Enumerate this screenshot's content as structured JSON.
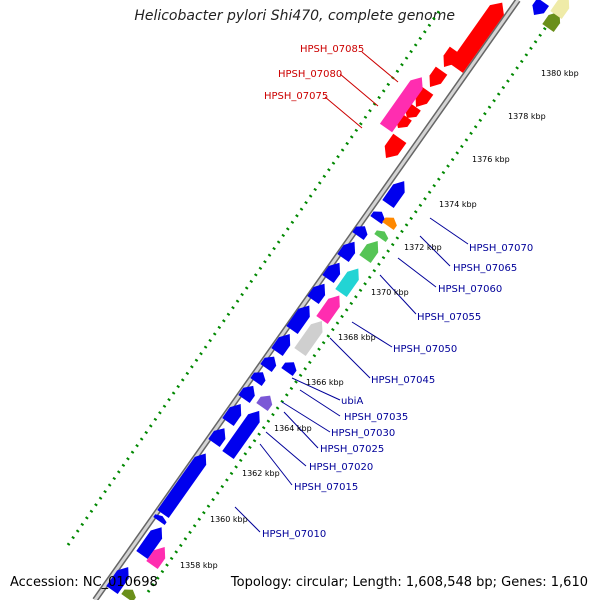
{
  "title": "Helicobacter pylori Shi470, complete genome",
  "accession": "Accession: NC_010698",
  "summary": "Topology: circular; Length: 1,608,548 bp; Genes: 1,610",
  "colors": {
    "backbone": "#999999",
    "ticks": "#008800",
    "reverse_genes": "#ff0000",
    "forward_genes": "#0000ee",
    "highlight_magenta": "#ff2db0",
    "cyan": "#22d4d4",
    "green": "#55c455",
    "orange": "#ff8800",
    "gray": "#cfcfcf",
    "violet": "#7b58d6",
    "olive": "#6a8f1a",
    "khaki": "#efeba8"
  },
  "tick_labels": [
    "1380 kbp",
    "1378 kbp",
    "1376 kbp",
    "1374 kbp",
    "1372 kbp",
    "1370 kbp",
    "1368 kbp",
    "1366 kbp",
    "1364 kbp",
    "1362 kbp",
    "1360 kbp",
    "1358 kbp"
  ],
  "reverse_labels": [
    "HPSH_07085",
    "HPSH_07080",
    "HPSH_07075"
  ],
  "forward_labels": [
    "HPSH_07070",
    "HPSH_07065",
    "HPSH_07060",
    "HPSH_07055",
    "HPSH_07050",
    "HPSH_07045",
    "ubiA",
    "HPSH_07035",
    "HPSH_07030",
    "HPSH_07025",
    "HPSH_07020",
    "HPSH_07015",
    "HPSH_07010"
  ]
}
